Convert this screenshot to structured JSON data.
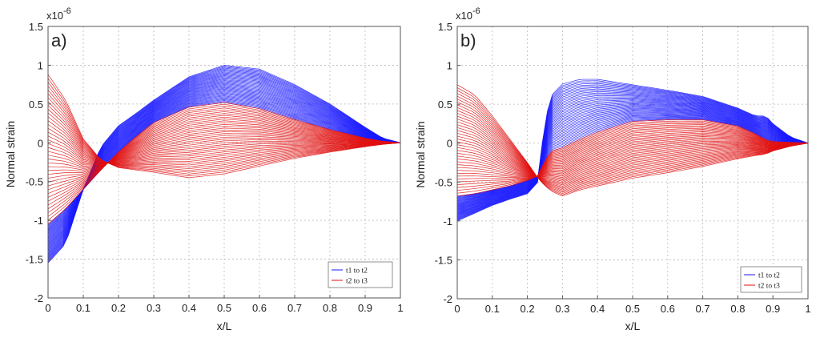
{
  "chart_data": [
    {
      "type": "line",
      "panel_label": "a)",
      "exponent_label": "x10",
      "exponent_power": "-6",
      "xlabel": "x/L",
      "ylabel": "Normal  strain",
      "xlim": [
        0,
        1
      ],
      "ylim": [
        -2,
        1.5
      ],
      "xticks": [
        "0",
        "0.1",
        "0.2",
        "0.3",
        "0.4",
        "0.5",
        "0.6",
        "0.7",
        "0.8",
        "0.9",
        "1"
      ],
      "yticks": [
        "1.5",
        "1",
        "0.5",
        "0",
        "-0.5",
        "-1",
        "-1.5",
        "-2"
      ],
      "grid": true,
      "legend_position": "bottom-right",
      "series": [
        {
          "name": "t1 to t2",
          "color": "#1a1aff",
          "curves": 40,
          "first_curve": {
            "x": [
              0,
              0.05,
              0.1,
              0.15,
              0.2,
              0.25,
              0.3,
              0.4,
              0.5,
              0.6,
              0.7,
              0.8,
              0.9,
              0.95,
              1
            ],
            "y": [
              -1.05,
              -0.85,
              -0.6,
              -0.35,
              -0.12,
              0.08,
              0.26,
              0.46,
              0.52,
              0.44,
              0.3,
              0.17,
              0.06,
              0.02,
              0
            ]
          },
          "last_curve": {
            "x": [
              0,
              0.05,
              0.1,
              0.15,
              0.2,
              0.25,
              0.3,
              0.4,
              0.5,
              0.6,
              0.7,
              0.8,
              0.9,
              0.95,
              1
            ],
            "y": [
              -1.55,
              -1.3,
              -0.6,
              -0.05,
              0.22,
              0.38,
              0.55,
              0.85,
              1.0,
              0.95,
              0.75,
              0.5,
              0.2,
              0.06,
              0
            ]
          }
        },
        {
          "name": "t2 to t3",
          "color": "#e01010",
          "curves": 40,
          "first_curve": {
            "x": [
              0,
              0.05,
              0.1,
              0.15,
              0.2,
              0.25,
              0.3,
              0.4,
              0.5,
              0.6,
              0.7,
              0.8,
              0.9,
              0.95,
              1
            ],
            "y": [
              -1.05,
              -0.85,
              -0.6,
              -0.35,
              -0.12,
              0.08,
              0.26,
              0.46,
              0.52,
              0.44,
              0.3,
              0.17,
              0.06,
              0.02,
              0
            ]
          },
          "last_curve": {
            "x": [
              0,
              0.05,
              0.1,
              0.15,
              0.2,
              0.25,
              0.3,
              0.4,
              0.5,
              0.6,
              0.7,
              0.8,
              0.9,
              0.95,
              1
            ],
            "y": [
              0.88,
              0.55,
              0.05,
              -0.22,
              -0.32,
              -0.35,
              -0.38,
              -0.45,
              -0.4,
              -0.3,
              -0.2,
              -0.12,
              -0.05,
              -0.02,
              0
            ]
          }
        }
      ]
    },
    {
      "type": "line",
      "panel_label": "b)",
      "exponent_label": "x10",
      "exponent_power": "-6",
      "xlabel": "x/L",
      "ylabel": "Normal  strain",
      "xlim": [
        0,
        1
      ],
      "ylim": [
        -2,
        1.5
      ],
      "xticks": [
        "0",
        "0.1",
        "0.2",
        "0.3",
        "0.4",
        "0.5",
        "0.6",
        "0.7",
        "0.8",
        "0.9",
        "1"
      ],
      "yticks": [
        "1.5",
        "1",
        "0.5",
        "0",
        "-0.5",
        "-1",
        "-1.5",
        "-2"
      ],
      "grid": true,
      "legend_position": "bottom-right",
      "series": [
        {
          "name": "t1 to t2",
          "color": "#1a1aff",
          "curves": 40,
          "first_curve": {
            "x": [
              0,
              0.05,
              0.1,
              0.15,
              0.2,
              0.23,
              0.25,
              0.27,
              0.3,
              0.35,
              0.4,
              0.5,
              0.6,
              0.7,
              0.8,
              0.85,
              0.88,
              0.9,
              0.95,
              1
            ],
            "y": [
              -0.68,
              -0.65,
              -0.6,
              -0.55,
              -0.48,
              -0.42,
              -0.22,
              -0.1,
              -0.06,
              0.05,
              0.14,
              0.28,
              0.3,
              0.3,
              0.22,
              0.12,
              0.04,
              0.02,
              0.01,
              0
            ]
          },
          "last_curve": {
            "x": [
              0,
              0.05,
              0.1,
              0.15,
              0.2,
              0.23,
              0.25,
              0.27,
              0.3,
              0.35,
              0.4,
              0.5,
              0.6,
              0.7,
              0.8,
              0.85,
              0.88,
              0.9,
              0.95,
              1
            ],
            "y": [
              -1.0,
              -0.9,
              -0.8,
              -0.72,
              -0.65,
              -0.5,
              0.3,
              0.62,
              0.76,
              0.82,
              0.82,
              0.75,
              0.68,
              0.6,
              0.45,
              0.35,
              0.35,
              0.25,
              0.08,
              0
            ]
          }
        },
        {
          "name": "t2 to t3",
          "color": "#e01010",
          "curves": 40,
          "first_curve": {
            "x": [
              0,
              0.05,
              0.1,
              0.15,
              0.2,
              0.23,
              0.25,
              0.27,
              0.3,
              0.35,
              0.4,
              0.5,
              0.6,
              0.7,
              0.8,
              0.85,
              0.88,
              0.9,
              0.95,
              1
            ],
            "y": [
              -0.68,
              -0.65,
              -0.6,
              -0.55,
              -0.48,
              -0.42,
              -0.22,
              -0.1,
              -0.06,
              0.05,
              0.14,
              0.28,
              0.3,
              0.3,
              0.22,
              0.12,
              0.04,
              0.02,
              0.01,
              0
            ]
          },
          "last_curve": {
            "x": [
              0,
              0.05,
              0.1,
              0.15,
              0.2,
              0.23,
              0.25,
              0.27,
              0.3,
              0.35,
              0.4,
              0.5,
              0.6,
              0.7,
              0.8,
              0.85,
              0.88,
              0.9,
              0.95,
              1
            ],
            "y": [
              0.75,
              0.62,
              0.35,
              0.05,
              -0.25,
              -0.45,
              -0.55,
              -0.62,
              -0.68,
              -0.6,
              -0.55,
              -0.45,
              -0.38,
              -0.3,
              -0.2,
              -0.16,
              -0.14,
              -0.1,
              -0.04,
              0
            ]
          }
        }
      ]
    }
  ]
}
